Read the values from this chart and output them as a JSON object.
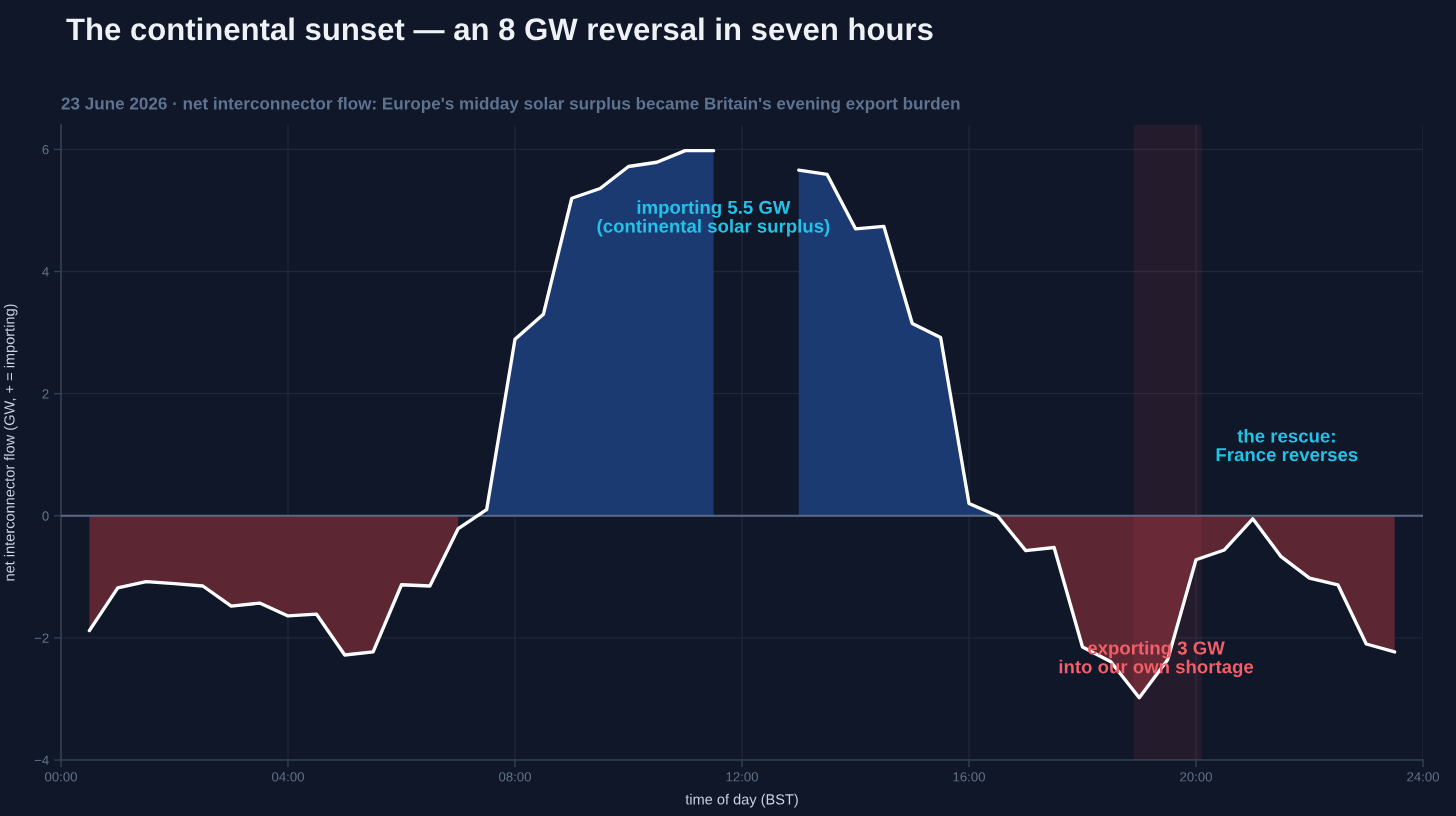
{
  "chart_data": {
    "type": "area",
    "title": "The continental sunset — an 8 GW reversal in seven hours",
    "subtitle": "23 June 2026 · net interconnector flow: Europe's midday solar surplus became Britain's evening export burden",
    "xlabel": "time of day (BST)",
    "ylabel": "net interconnector flow (GW, + = importing)",
    "x": [
      0.5,
      1,
      1.5,
      2,
      2.5,
      3,
      3.5,
      4,
      4.5,
      5,
      5.5,
      6,
      6.5,
      7,
      7.5,
      8,
      8.5,
      9,
      9.5,
      10,
      10.5,
      11,
      11.5,
      12,
      12.5,
      13,
      13.5,
      14,
      14.5,
      15,
      15.5,
      16,
      16.5,
      17,
      17.5,
      18,
      18.5,
      19,
      19.5,
      20,
      20.5,
      21,
      21.5,
      22,
      22.5,
      23,
      23.5
    ],
    "series": [
      {
        "color": "#1c3a72",
        "values": [
          null,
          null,
          null,
          null,
          null,
          null,
          null,
          null,
          null,
          null,
          null,
          null,
          null,
          null,
          0.1,
          2.89,
          3.3,
          5.2,
          5.36,
          5.72,
          5.79,
          5.98,
          5.98,
          null,
          null,
          5.66,
          5.59,
          4.7,
          4.74,
          3.15,
          2.92,
          0.2,
          0.0,
          null,
          null,
          null,
          null,
          null,
          null,
          null,
          null,
          null,
          null,
          null,
          null,
          null,
          null
        ]
      },
      {
        "color": "#5c2633",
        "values": [
          -1.88,
          -1.18,
          -1.08,
          -1.11,
          -1.15,
          -1.48,
          -1.43,
          -1.64,
          -1.61,
          -2.28,
          -2.23,
          -1.13,
          -1.15,
          -0.21,
          null,
          null,
          null,
          null,
          null,
          null,
          null,
          null,
          null,
          null,
          null,
          null,
          null,
          null,
          null,
          null,
          null,
          null,
          0.0,
          -0.57,
          -0.52,
          -2.15,
          -2.39,
          -2.98,
          -2.36,
          -0.72,
          -0.56,
          -0.05,
          -0.67,
          -1.02,
          -1.13,
          -2.1,
          -2.23
        ]
      },
      {
        "type": "line",
        "color": "#ffffff",
        "values": [
          -1.88,
          -1.18,
          -1.08,
          -1.11,
          -1.15,
          -1.48,
          -1.43,
          -1.64,
          -1.61,
          -2.28,
          -2.23,
          -1.13,
          -1.15,
          -0.21,
          0.1,
          2.89,
          3.3,
          5.2,
          5.36,
          5.72,
          5.79,
          5.98,
          5.98,
          null,
          null,
          5.66,
          5.59,
          4.7,
          4.74,
          3.15,
          2.92,
          0.2,
          0.0,
          -0.57,
          -0.52,
          -2.15,
          -2.39,
          -2.98,
          -2.36,
          -0.72,
          -0.56,
          -0.05,
          -0.67,
          -1.02,
          -1.13,
          -2.1,
          -2.23
        ]
      }
    ],
    "xlim": [
      0,
      24
    ],
    "xticks": [
      {
        "value": 0,
        "label": "00:00"
      },
      {
        "value": 4,
        "label": "04:00"
      },
      {
        "value": 8,
        "label": "08:00"
      },
      {
        "value": 12,
        "label": "12:00"
      },
      {
        "value": 16,
        "label": "16:00"
      },
      {
        "value": 20,
        "label": "20:00"
      },
      {
        "value": 24,
        "label": "24:00"
      }
    ],
    "ylim": [
      -4,
      6.4
    ],
    "yticks": [
      {
        "value": -4,
        "label": "−4"
      },
      {
        "value": -2,
        "label": "−2"
      },
      0,
      2,
      4,
      6
    ],
    "grid": true,
    "line_style": "solid",
    "ref_lines": [
      {
        "axis": "y",
        "value": 0,
        "color": "#5b6b86"
      }
    ],
    "bands": [
      {
        "axis": "x",
        "from": 18.9,
        "to": 20.1,
        "color": "#e0475a"
      }
    ],
    "annotations": [
      "importing 5.5 GW\n(continental solar surplus)",
      "the rescue:\nFrance reverses",
      "exporting 3 GW\ninto our own shortage"
    ]
  }
}
